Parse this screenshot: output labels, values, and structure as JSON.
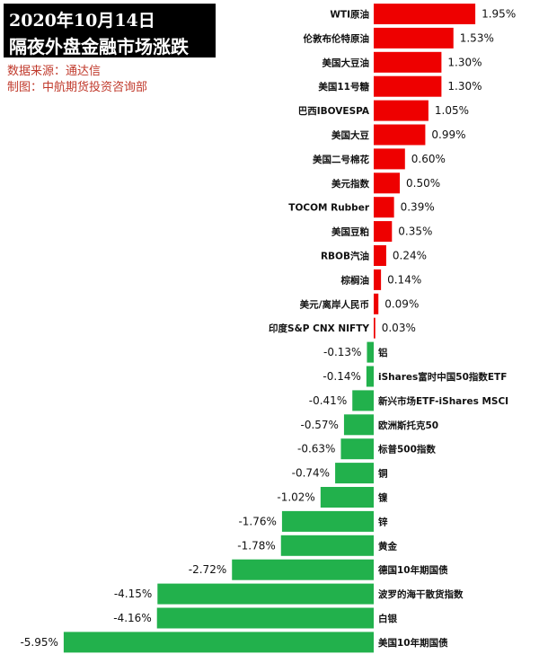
{
  "header": {
    "date_line": "2020年10月14日",
    "title_line": "隔夜外盘金融市场涨跌",
    "source": "数据来源：通达信",
    "maker": "制图：中航期货投资咨询部"
  },
  "colors": {
    "positive": "#ee0000",
    "negative": "#22b14c",
    "title_bg": "#000000",
    "source_text": "#c0392b"
  },
  "chart_data": {
    "type": "bar",
    "orientation": "horizontal",
    "unit": "%",
    "categories": [
      "WTI原油",
      "伦敦布伦特原油",
      "美国大豆油",
      "美国11号糖",
      "巴西IBOVESPA",
      "美国大豆",
      "美国二号棉花",
      "美元指数",
      "TOCOM Rubber",
      "美国豆粕",
      "RBOB汽油",
      "棕榈油",
      "美元/离岸人民币",
      "印度S&P CNX NIFTY",
      "铝",
      "iShares富时中国50指数ETF",
      "新兴市场ETF-iShares MSCI",
      "欧洲斯托克50",
      "标普500指数",
      "铜",
      "镍",
      "锌",
      "黄金",
      "德国10年期国债",
      "波罗的海干散货指数",
      "白银",
      "美国10年期国债"
    ],
    "values": [
      1.95,
      1.53,
      1.3,
      1.3,
      1.05,
      0.99,
      0.6,
      0.5,
      0.39,
      0.35,
      0.24,
      0.14,
      0.09,
      0.03,
      -0.13,
      -0.14,
      -0.41,
      -0.57,
      -0.63,
      -0.74,
      -1.02,
      -1.76,
      -1.78,
      -2.72,
      -4.15,
      -4.16,
      -5.95
    ],
    "value_labels": [
      "1.95%",
      "1.53%",
      "1.30%",
      "1.30%",
      "1.05%",
      "0.99%",
      "0.60%",
      "0.50%",
      "0.39%",
      "0.35%",
      "0.24%",
      "0.14%",
      "0.09%",
      "0.03%",
      "-0.13%",
      "-0.14%",
      "-0.41%",
      "-0.57%",
      "-0.63%",
      "-0.74%",
      "-1.02%",
      "-1.76%",
      "-1.78%",
      "-2.72%",
      "-4.15%",
      "-4.16%",
      "-5.95%"
    ],
    "legend": "none",
    "grid": false
  }
}
